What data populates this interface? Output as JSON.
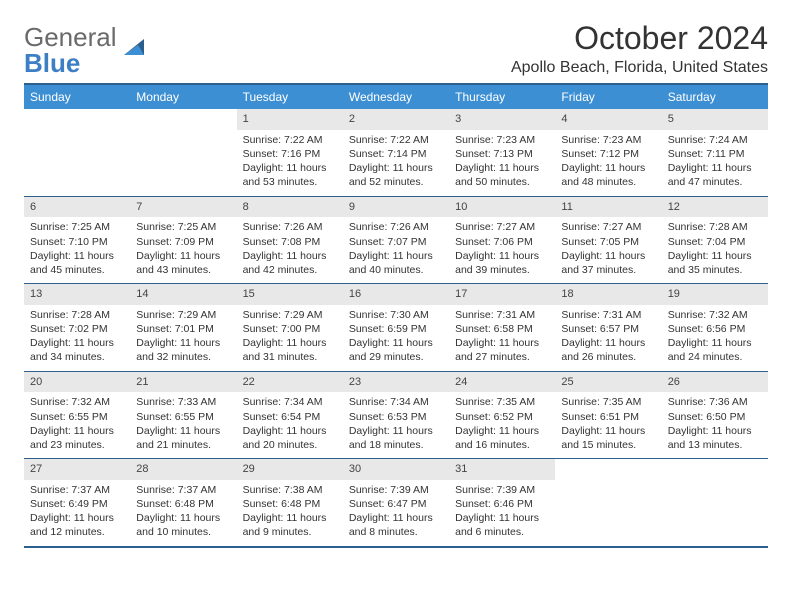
{
  "logo": {
    "text1": "General",
    "text2": "Blue"
  },
  "title": "October 2024",
  "location": "Apollo Beach, Florida, United States",
  "colors": {
    "header_bg": "#3d8fd4",
    "border": "#2c5f8d",
    "daynum_bg": "#e8e8e8",
    "logo_gray": "#6a6a6a",
    "logo_blue": "#3d7fc4"
  },
  "day_headers": [
    "Sunday",
    "Monday",
    "Tuesday",
    "Wednesday",
    "Thursday",
    "Friday",
    "Saturday"
  ],
  "weeks": [
    [
      null,
      null,
      {
        "n": "1",
        "sr": "7:22 AM",
        "ss": "7:16 PM",
        "dl": "11 hours and 53 minutes."
      },
      {
        "n": "2",
        "sr": "7:22 AM",
        "ss": "7:14 PM",
        "dl": "11 hours and 52 minutes."
      },
      {
        "n": "3",
        "sr": "7:23 AM",
        "ss": "7:13 PM",
        "dl": "11 hours and 50 minutes."
      },
      {
        "n": "4",
        "sr": "7:23 AM",
        "ss": "7:12 PM",
        "dl": "11 hours and 48 minutes."
      },
      {
        "n": "5",
        "sr": "7:24 AM",
        "ss": "7:11 PM",
        "dl": "11 hours and 47 minutes."
      }
    ],
    [
      {
        "n": "6",
        "sr": "7:25 AM",
        "ss": "7:10 PM",
        "dl": "11 hours and 45 minutes."
      },
      {
        "n": "7",
        "sr": "7:25 AM",
        "ss": "7:09 PM",
        "dl": "11 hours and 43 minutes."
      },
      {
        "n": "8",
        "sr": "7:26 AM",
        "ss": "7:08 PM",
        "dl": "11 hours and 42 minutes."
      },
      {
        "n": "9",
        "sr": "7:26 AM",
        "ss": "7:07 PM",
        "dl": "11 hours and 40 minutes."
      },
      {
        "n": "10",
        "sr": "7:27 AM",
        "ss": "7:06 PM",
        "dl": "11 hours and 39 minutes."
      },
      {
        "n": "11",
        "sr": "7:27 AM",
        "ss": "7:05 PM",
        "dl": "11 hours and 37 minutes."
      },
      {
        "n": "12",
        "sr": "7:28 AM",
        "ss": "7:04 PM",
        "dl": "11 hours and 35 minutes."
      }
    ],
    [
      {
        "n": "13",
        "sr": "7:28 AM",
        "ss": "7:02 PM",
        "dl": "11 hours and 34 minutes."
      },
      {
        "n": "14",
        "sr": "7:29 AM",
        "ss": "7:01 PM",
        "dl": "11 hours and 32 minutes."
      },
      {
        "n": "15",
        "sr": "7:29 AM",
        "ss": "7:00 PM",
        "dl": "11 hours and 31 minutes."
      },
      {
        "n": "16",
        "sr": "7:30 AM",
        "ss": "6:59 PM",
        "dl": "11 hours and 29 minutes."
      },
      {
        "n": "17",
        "sr": "7:31 AM",
        "ss": "6:58 PM",
        "dl": "11 hours and 27 minutes."
      },
      {
        "n": "18",
        "sr": "7:31 AM",
        "ss": "6:57 PM",
        "dl": "11 hours and 26 minutes."
      },
      {
        "n": "19",
        "sr": "7:32 AM",
        "ss": "6:56 PM",
        "dl": "11 hours and 24 minutes."
      }
    ],
    [
      {
        "n": "20",
        "sr": "7:32 AM",
        "ss": "6:55 PM",
        "dl": "11 hours and 23 minutes."
      },
      {
        "n": "21",
        "sr": "7:33 AM",
        "ss": "6:55 PM",
        "dl": "11 hours and 21 minutes."
      },
      {
        "n": "22",
        "sr": "7:34 AM",
        "ss": "6:54 PM",
        "dl": "11 hours and 20 minutes."
      },
      {
        "n": "23",
        "sr": "7:34 AM",
        "ss": "6:53 PM",
        "dl": "11 hours and 18 minutes."
      },
      {
        "n": "24",
        "sr": "7:35 AM",
        "ss": "6:52 PM",
        "dl": "11 hours and 16 minutes."
      },
      {
        "n": "25",
        "sr": "7:35 AM",
        "ss": "6:51 PM",
        "dl": "11 hours and 15 minutes."
      },
      {
        "n": "26",
        "sr": "7:36 AM",
        "ss": "6:50 PM",
        "dl": "11 hours and 13 minutes."
      }
    ],
    [
      {
        "n": "27",
        "sr": "7:37 AM",
        "ss": "6:49 PM",
        "dl": "11 hours and 12 minutes."
      },
      {
        "n": "28",
        "sr": "7:37 AM",
        "ss": "6:48 PM",
        "dl": "11 hours and 10 minutes."
      },
      {
        "n": "29",
        "sr": "7:38 AM",
        "ss": "6:48 PM",
        "dl": "11 hours and 9 minutes."
      },
      {
        "n": "30",
        "sr": "7:39 AM",
        "ss": "6:47 PM",
        "dl": "11 hours and 8 minutes."
      },
      {
        "n": "31",
        "sr": "7:39 AM",
        "ss": "6:46 PM",
        "dl": "11 hours and 6 minutes."
      },
      null,
      null
    ]
  ]
}
